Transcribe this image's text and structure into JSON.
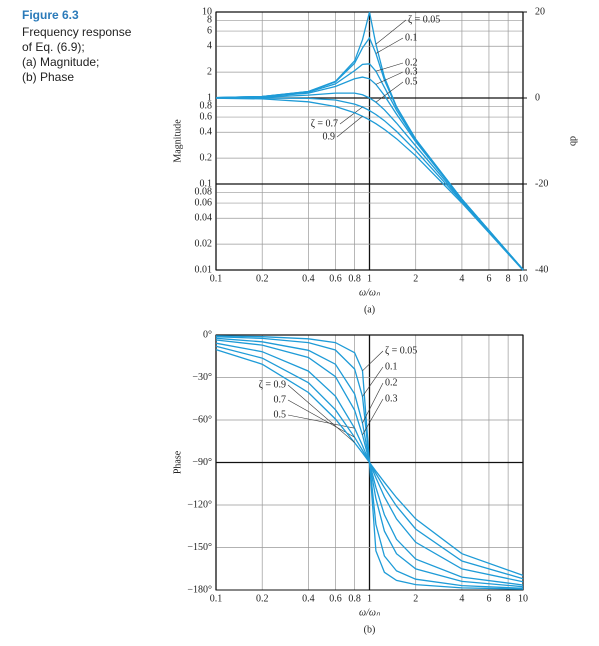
{
  "caption": {
    "figure": "Figure 6.3",
    "lines": [
      "Frequency response",
      "of Eq. (6.9);",
      "(a) Magnitude;",
      "(b) Phase"
    ]
  },
  "chart_data": [
    {
      "type": "line",
      "subtitle": "(a)",
      "x_label": "ω/ωₙ",
      "y_label": "Magnitude",
      "y2_label": "db",
      "xscale": "log",
      "yscale": "log",
      "grid": true,
      "color": "#1e9bd7",
      "x": [
        0.1,
        0.2,
        0.4,
        0.6,
        0.8,
        0.9,
        1,
        1.1,
        1.25,
        1.5,
        2,
        4,
        10
      ],
      "xlim": [
        0.1,
        10
      ],
      "xticks": [
        0.1,
        0.2,
        0.4,
        0.6,
        0.8,
        1,
        2,
        4,
        6,
        8,
        10
      ],
      "ylim": [
        0.01,
        10
      ],
      "yticks": [
        0.01,
        0.02,
        0.04,
        0.06,
        0.08,
        0.1,
        0.2,
        0.4,
        0.6,
        0.8,
        1,
        2,
        4,
        6,
        8,
        10
      ],
      "y2lim": [
        -40,
        20
      ],
      "y2ticks": [
        -40,
        -20,
        0,
        20
      ],
      "series": [
        {
          "name": "ζ = 0.05",
          "values": [
            1.01,
            1.04,
            1.19,
            1.56,
            2.71,
            4.76,
            10,
            4.22,
            1.74,
            0.794,
            0.333,
            0.0666,
            0.0101
          ]
        },
        {
          "name": "0.1",
          "values": [
            1.01,
            1.04,
            1.19,
            1.54,
            2.54,
            3.82,
            5,
            3.29,
            1.62,
            0.778,
            0.33,
            0.0666,
            0.0101
          ]
        },
        {
          "name": "0.2",
          "values": [
            1.01,
            1.04,
            1.17,
            1.46,
            2.08,
            2.46,
            2.5,
            2.05,
            1.33,
            0.721,
            0.322,
            0.0663,
            0.0101
          ]
        },
        {
          "name": "0.3",
          "values": [
            1.01,
            1.03,
            1.14,
            1.36,
            1.67,
            1.75,
            1.67,
            1.44,
            1.07,
            0.649,
            0.31,
            0.0658,
            0.0101
          ]
        },
        {
          "name": "0.5",
          "values": [
            1.005,
            1.02,
            1.08,
            1.14,
            1.14,
            1.09,
            1,
            0.893,
            0.73,
            0.512,
            0.277,
            0.0644,
            0.0101
          ]
        },
        {
          "name": "ζ = 0.7",
          "values": [
            1.0,
            1.0,
            0.99,
            0.947,
            0.85,
            0.785,
            0.714,
            0.643,
            0.544,
            0.409,
            0.244,
            0.0625,
            0.01
          ]
        },
        {
          "name": "0.9",
          "values": [
            0.994,
            0.975,
            0.904,
            0.797,
            0.674,
            0.613,
            0.556,
            0.502,
            0.431,
            0.336,
            0.213,
            0.0601,
            0.00994
          ]
        }
      ]
    },
    {
      "type": "line",
      "subtitle": "(b)",
      "x_label": "ω/ωₙ",
      "y_label": "Phase",
      "xscale": "log",
      "grid": true,
      "color": "#1e9bd7",
      "x": [
        0.1,
        0.2,
        0.4,
        0.6,
        0.8,
        0.9,
        1,
        1.1,
        1.25,
        1.5,
        2,
        4,
        10
      ],
      "xlim": [
        0.1,
        10
      ],
      "xticks": [
        0.1,
        0.2,
        0.4,
        0.6,
        0.8,
        1,
        2,
        4,
        6,
        8,
        10
      ],
      "ylim": [
        -180,
        0
      ],
      "yticks": [
        {
          "value": 0,
          "label": "0°"
        },
        {
          "value": -30,
          "label": "−30°"
        },
        {
          "value": -60,
          "label": "−60°"
        },
        {
          "value": -90,
          "label": "−90°"
        },
        {
          "value": -120,
          "label": "−120°"
        },
        {
          "value": -150,
          "label": "−150°"
        },
        {
          "value": -180,
          "label": "−180°"
        }
      ],
      "series": [
        {
          "name": "ζ = 0.05",
          "values": [
            -0.6,
            -1.2,
            -2.7,
            -5.4,
            -12.5,
            -25.3,
            -90,
            -152.4,
            -167.5,
            -173.2,
            -176.2,
            -178.5,
            -179.4
          ]
        },
        {
          "name": "0.1",
          "values": [
            -1.2,
            -2.4,
            -5.4,
            -10.6,
            -24.0,
            -43.4,
            -90,
            -133.7,
            -156.0,
            -166.5,
            -172.4,
            -176.9,
            -178.8
          ]
        },
        {
          "name": "0.2",
          "values": [
            -2.3,
            -4.8,
            -10.8,
            -20.6,
            -41.6,
            -62.2,
            -90,
            -115.5,
            -138.4,
            -154.4,
            -165.1,
            -173.9,
            -177.7
          ]
        },
        {
          "name": "0.3",
          "values": [
            -3.5,
            -7.1,
            -15.9,
            -29.4,
            -53.1,
            -70.6,
            -90,
            -107.6,
            -126.9,
            -144.2,
            -158.2,
            -170.9,
            -176.5
          ]
        },
        {
          "name": "0.5",
          "values": [
            -5.8,
            -11.8,
            -25.5,
            -43.2,
            -65.8,
            -78.1,
            -90,
            -100.8,
            -114.2,
            -129.8,
            -146.3,
            -165.1,
            -174.2
          ]
        },
        {
          "name": "0.7",
          "values": [
            -8.0,
            -16.3,
            -33.7,
            -52.7,
            -72.2,
            -81.4,
            -90,
            -97.8,
            -107.8,
            -120.8,
            -137.0,
            -159.5,
            -172.0
          ]
        },
        {
          "name": "ζ = 0.9",
          "values": [
            -10.3,
            -20.6,
            -40.6,
            -59.3,
            -76.0,
            -83.3,
            -90,
            -96.1,
            -104.0,
            -114.8,
            -129.8,
            -154.4,
            -169.7
          ]
        }
      ]
    }
  ]
}
